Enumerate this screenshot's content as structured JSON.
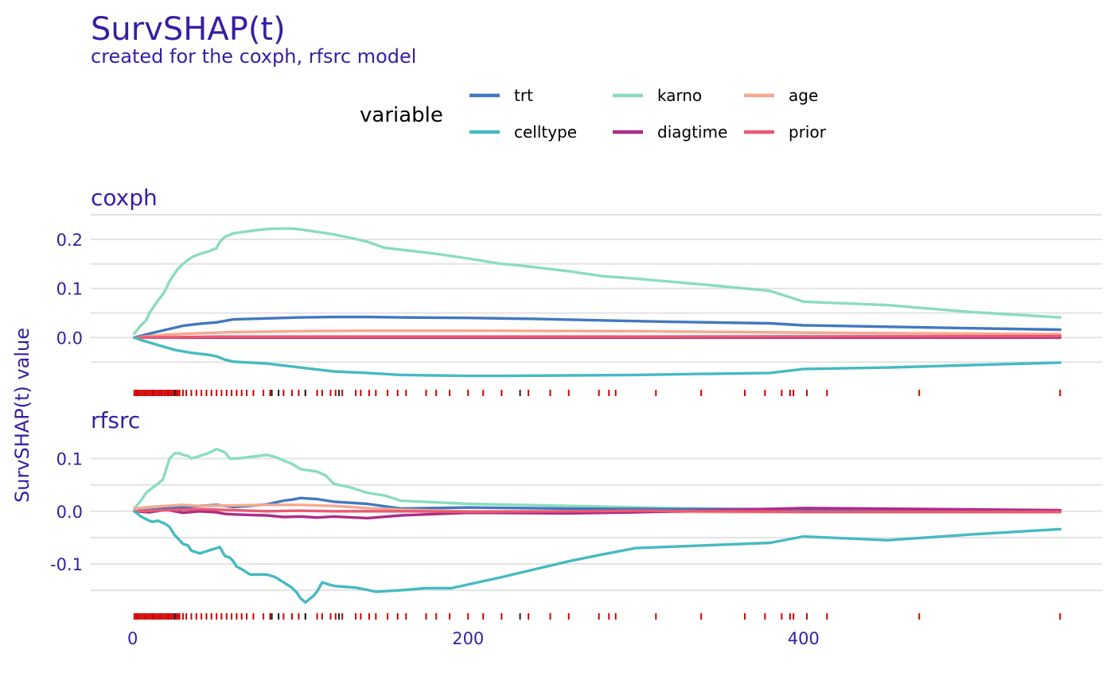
{
  "chart_data": {
    "type": "line",
    "title": "SurvSHAP(t)",
    "subtitle": "created for the coxph, rfsrc model",
    "ylabel": "SurvSHAP(t) value",
    "xlabel": "",
    "legend": {
      "title": "variable",
      "position": "top",
      "entries": [
        {
          "key": "trt",
          "label": "trt"
        },
        {
          "key": "celltype",
          "label": "celltype"
        },
        {
          "key": "karno",
          "label": "karno"
        },
        {
          "key": "diagtime",
          "label": "diagtime"
        },
        {
          "key": "age",
          "label": "age"
        },
        {
          "key": "prior",
          "label": "prior"
        }
      ]
    },
    "colors": {
      "trt": "#4378bf",
      "celltype": "#46bac2",
      "karno": "#8bdcbe",
      "diagtime": "#ae2c87",
      "age": "#f6a88f",
      "prior": "#e85a73",
      "rug_event": "#d00000",
      "rug_censored": "#222222",
      "text": "#371ea3"
    },
    "x_ticks": [
      "0",
      "200",
      "400"
    ],
    "x_tick_values": [
      0,
      200,
      400
    ],
    "xlim": [
      -25,
      578
    ],
    "grid": true,
    "rug": {
      "event_times": [
        1,
        2,
        3,
        4,
        5,
        6,
        7,
        8,
        9,
        10,
        11,
        12,
        13,
        14,
        15,
        16,
        17,
        18,
        19,
        20,
        21,
        22,
        23,
        24,
        25,
        26,
        27,
        28,
        30,
        32,
        35,
        38,
        41,
        44,
        47,
        50,
        53,
        56,
        59,
        62,
        65,
        68,
        72,
        78,
        82,
        87,
        90,
        95,
        99,
        103,
        110,
        113,
        118,
        121,
        125,
        133,
        136,
        141,
        145,
        152,
        158,
        163,
        175,
        181,
        189,
        200,
        209,
        220,
        236,
        249,
        260,
        278,
        284,
        288,
        312,
        339,
        365,
        377,
        387,
        392,
        394,
        402,
        414,
        469,
        553
      ],
      "censored_times": [
        25,
        83,
        87,
        103,
        123,
        231
      ]
    },
    "panels": [
      {
        "name": "coxph",
        "ylim": [
          -0.09,
          0.25
        ],
        "y_ticks": [
          "0.2",
          "0.1",
          "0.0"
        ],
        "y_tick_values": [
          0.2,
          0.1,
          0.0
        ],
        "series": [
          {
            "name": "karno",
            "x": [
              1,
              5,
              8,
              10,
              12,
              15,
              18,
              20,
              22,
              25,
              27,
              30,
              33,
              36,
              40,
              45,
              50,
              52,
              55,
              60,
              70,
              80,
              90,
              95,
              100,
              110,
              120,
              130,
              140,
              150,
              160,
              180,
              200,
              220,
              230,
              260,
              280,
              300,
              340,
              380,
              400,
              450,
              500,
              553
            ],
            "values": [
              0.008,
              0.025,
              0.035,
              0.05,
              0.06,
              0.075,
              0.088,
              0.1,
              0.115,
              0.13,
              0.14,
              0.15,
              0.158,
              0.165,
              0.17,
              0.175,
              0.182,
              0.195,
              0.205,
              0.212,
              0.217,
              0.221,
              0.222,
              0.222,
              0.22,
              0.215,
              0.21,
              0.203,
              0.195,
              0.183,
              0.179,
              0.171,
              0.161,
              0.15,
              0.147,
              0.135,
              0.125,
              0.12,
              0.108,
              0.095,
              0.073,
              0.066,
              0.052,
              0.041
            ]
          },
          {
            "name": "trt",
            "x": [
              1,
              10,
              20,
              30,
              40,
              50,
              55,
              60,
              80,
              100,
              120,
              140,
              160,
              200,
              240,
              280,
              320,
              380,
              400,
              450,
              500,
              553
            ],
            "values": [
              0.0,
              0.008,
              0.016,
              0.024,
              0.028,
              0.031,
              0.034,
              0.037,
              0.039,
              0.041,
              0.042,
              0.042,
              0.041,
              0.04,
              0.038,
              0.035,
              0.032,
              0.029,
              0.025,
              0.022,
              0.019,
              0.016
            ]
          },
          {
            "name": "age",
            "x": [
              1,
              20,
              40,
              60,
              100,
              140,
              200,
              300,
              400,
              500,
              553
            ],
            "values": [
              0.0,
              0.006,
              0.009,
              0.011,
              0.013,
              0.014,
              0.014,
              0.013,
              0.01,
              0.008,
              0.007
            ]
          },
          {
            "name": "diagtime",
            "x": [
              1,
              100,
              300,
              553
            ],
            "values": [
              0.0,
              0.0,
              0.0,
              0.0
            ]
          },
          {
            "name": "prior",
            "x": [
              1,
              50,
              150,
              300,
              553
            ],
            "values": [
              0.0,
              0.002,
              0.002,
              0.002,
              0.003
            ]
          },
          {
            "name": "celltype",
            "x": [
              1,
              5,
              10,
              15,
              20,
              25,
              30,
              35,
              40,
              45,
              50,
              55,
              60,
              80,
              90,
              100,
              110,
              120,
              140,
              160,
              180,
              200,
              220,
              260,
              300,
              340,
              380,
              400,
              450,
              500,
              553
            ],
            "values": [
              0.0,
              -0.005,
              -0.01,
              -0.015,
              -0.02,
              -0.025,
              -0.028,
              -0.031,
              -0.033,
              -0.035,
              -0.038,
              -0.045,
              -0.049,
              -0.053,
              -0.057,
              -0.061,
              -0.065,
              -0.069,
              -0.072,
              -0.076,
              -0.077,
              -0.078,
              -0.078,
              -0.077,
              -0.076,
              -0.074,
              -0.072,
              -0.064,
              -0.061,
              -0.056,
              -0.051
            ]
          }
        ]
      },
      {
        "name": "rfsrc",
        "ylim": [
          -0.18,
          0.14
        ],
        "y_ticks": [
          "0.1",
          "0.0",
          "-0.1"
        ],
        "y_tick_values": [
          0.1,
          0.0,
          -0.1
        ],
        "series": [
          {
            "name": "karno",
            "x": [
              1,
              5,
              8,
              12,
              15,
              18,
              22,
              25,
              28,
              30,
              33,
              35,
              40,
              45,
              50,
              55,
              58,
              62,
              70,
              80,
              85,
              90,
              95,
              100,
              110,
              115,
              120,
              130,
              140,
              150,
              160,
              200,
              260,
              320,
              380,
              420,
              500,
              553
            ],
            "values": [
              0.005,
              0.02,
              0.035,
              0.045,
              0.052,
              0.06,
              0.1,
              0.11,
              0.11,
              0.107,
              0.105,
              0.1,
              0.105,
              0.11,
              0.118,
              0.112,
              0.1,
              0.1,
              0.103,
              0.107,
              0.103,
              0.096,
              0.09,
              0.08,
              0.075,
              0.068,
              0.052,
              0.045,
              0.035,
              0.03,
              0.02,
              0.014,
              0.01,
              0.006,
              0.003,
              0.002,
              0.001,
              0.0
            ]
          },
          {
            "name": "trt",
            "x": [
              1,
              20,
              40,
              50,
              60,
              70,
              80,
              90,
              95,
              100,
              110,
              120,
              140,
              160,
              200,
              260,
              320,
              380,
              400,
              553
            ],
            "values": [
              0.0,
              0.005,
              0.01,
              0.012,
              0.008,
              0.01,
              0.013,
              0.02,
              0.022,
              0.025,
              0.023,
              0.018,
              0.014,
              0.005,
              0.007,
              0.005,
              0.004,
              0.004,
              0.003,
              0.001
            ]
          },
          {
            "name": "age",
            "x": [
              1,
              10,
              20,
              30,
              40,
              60,
              80,
              100,
              120,
              140,
              160,
              200,
              300,
              400,
              553
            ],
            "values": [
              0.005,
              0.008,
              0.01,
              0.012,
              0.01,
              0.011,
              0.012,
              0.012,
              0.01,
              0.006,
              0.003,
              0.0,
              -0.001,
              -0.002,
              -0.002
            ]
          },
          {
            "name": "diagtime",
            "x": [
              1,
              10,
              20,
              30,
              40,
              50,
              55,
              60,
              70,
              80,
              90,
              100,
              110,
              120,
              140,
              160,
              200,
              260,
              300,
              400,
              553
            ],
            "values": [
              0.0,
              -0.002,
              0.003,
              -0.003,
              0.0,
              -0.002,
              -0.005,
              -0.006,
              -0.007,
              -0.008,
              -0.011,
              -0.01,
              -0.012,
              -0.01,
              -0.013,
              -0.008,
              -0.003,
              -0.004,
              -0.002,
              0.006,
              0.002
            ]
          },
          {
            "name": "prior",
            "x": [
              1,
              20,
              40,
              60,
              80,
              100,
              120,
              140,
              160,
              200,
              260,
              300,
              400,
              553
            ],
            "values": [
              0.0,
              0.002,
              0.004,
              0.002,
              0.0,
              0.001,
              0.0,
              0.0,
              0.0,
              -0.001,
              0.0,
              0.001,
              -0.001,
              -0.001
            ]
          },
          {
            "name": "celltype",
            "x": [
              1,
              3,
              5,
              8,
              10,
              12,
              15,
              18,
              20,
              22,
              25,
              28,
              30,
              33,
              35,
              38,
              40,
              45,
              50,
              52,
              55,
              58,
              60,
              62,
              65,
              70,
              80,
              85,
              90,
              95,
              98,
              100,
              103,
              108,
              110,
              113,
              118,
              121,
              125,
              133,
              141,
              145,
              160,
              175,
              190,
              220,
              240,
              260,
              280,
              300,
              340,
              380,
              400,
              450,
              500,
              553
            ],
            "values": [
              0.0,
              -0.005,
              -0.01,
              -0.015,
              -0.018,
              -0.02,
              -0.018,
              -0.022,
              -0.025,
              -0.03,
              -0.045,
              -0.055,
              -0.062,
              -0.065,
              -0.075,
              -0.078,
              -0.08,
              -0.075,
              -0.07,
              -0.068,
              -0.085,
              -0.088,
              -0.095,
              -0.105,
              -0.11,
              -0.12,
              -0.12,
              -0.125,
              -0.135,
              -0.145,
              -0.155,
              -0.165,
              -0.173,
              -0.16,
              -0.152,
              -0.135,
              -0.14,
              -0.142,
              -0.143,
              -0.145,
              -0.15,
              -0.153,
              -0.15,
              -0.146,
              -0.146,
              -0.125,
              -0.11,
              -0.095,
              -0.082,
              -0.07,
              -0.065,
              -0.06,
              -0.048,
              -0.055,
              -0.044,
              -0.034
            ]
          }
        ]
      }
    ]
  }
}
